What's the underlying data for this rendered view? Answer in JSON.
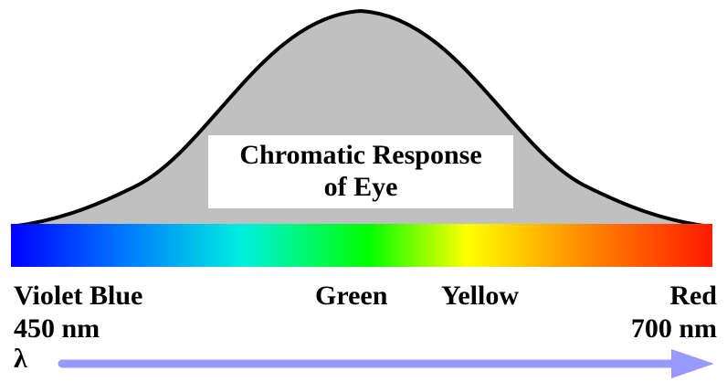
{
  "title": [
    "Chromatic Response",
    "of Eye"
  ],
  "color_labels": [
    "Violet Blue",
    "Green",
    "Yellow",
    "Red"
  ],
  "wavelengths": {
    "start": "450 nm",
    "end": "700 nm"
  },
  "axis_symbol": "λ"
}
